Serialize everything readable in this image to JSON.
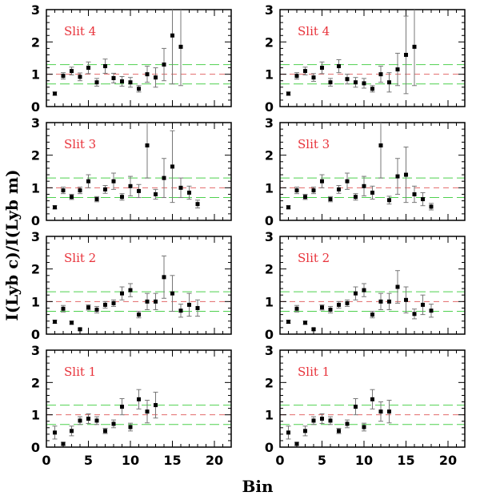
{
  "figure": {
    "xlabel": "Bin",
    "ylabel": "I(Lyb c)/I(Lyb m)"
  },
  "colors": {
    "label": "#e8333b",
    "green_line": "#4fd14f",
    "red_line": "#e36a6a",
    "marker": "#000000",
    "errorbar": "#777777"
  },
  "chart_data": [
    {
      "type": "scatter",
      "title": "Slit 4",
      "column": "left",
      "row": 1,
      "x": [
        1,
        2,
        3,
        4,
        5,
        6,
        7,
        8,
        9,
        10,
        11,
        12,
        13,
        14,
        15,
        16
      ],
      "y": [
        0.4,
        0.95,
        1.1,
        0.92,
        1.2,
        0.75,
        1.25,
        0.88,
        0.78,
        0.75,
        0.55,
        1.0,
        0.9,
        1.3,
        2.2,
        1.85
      ],
      "err": [
        0.05,
        0.1,
        0.12,
        0.12,
        0.18,
        0.12,
        0.22,
        0.15,
        0.15,
        0.15,
        0.1,
        0.25,
        0.3,
        0.5,
        1.5,
        1.2
      ],
      "xlim": [
        0,
        22
      ],
      "ylim": [
        0,
        3
      ],
      "xticks": [
        0,
        5,
        10,
        15,
        20
      ],
      "yticks": [
        0,
        1,
        2,
        3
      ],
      "hlines": {
        "green": [
          0.7,
          1.3
        ],
        "red": [
          1.0
        ]
      }
    },
    {
      "type": "scatter",
      "title": "Slit 4",
      "column": "right",
      "row": 1,
      "x": [
        1,
        2,
        3,
        4,
        5,
        6,
        7,
        8,
        9,
        10,
        11,
        12,
        13,
        14,
        15,
        16
      ],
      "y": [
        0.4,
        0.95,
        1.1,
        0.9,
        1.2,
        0.75,
        1.25,
        0.85,
        0.75,
        0.72,
        0.55,
        1.0,
        0.75,
        1.15,
        1.6,
        1.85
      ],
      "err": [
        0.05,
        0.1,
        0.12,
        0.12,
        0.18,
        0.12,
        0.2,
        0.15,
        0.15,
        0.15,
        0.1,
        0.25,
        0.3,
        0.5,
        1.2,
        1.2
      ],
      "xlim": [
        0,
        22
      ],
      "ylim": [
        0,
        3
      ],
      "xticks": [
        0,
        5,
        10,
        15,
        20
      ],
      "yticks": [
        0,
        1,
        2,
        3
      ],
      "hlines": {
        "green": [
          0.7,
          1.3
        ],
        "red": [
          1.0
        ]
      }
    },
    {
      "type": "scatter",
      "title": "Slit 3",
      "column": "left",
      "row": 2,
      "x": [
        1,
        2,
        3,
        4,
        5,
        6,
        7,
        8,
        9,
        10,
        11,
        12,
        13,
        14,
        15,
        16,
        17,
        18
      ],
      "y": [
        0.4,
        0.92,
        0.72,
        0.92,
        1.2,
        0.65,
        0.95,
        1.2,
        0.72,
        1.05,
        0.9,
        2.3,
        0.8,
        1.3,
        1.65,
        1.0,
        0.85,
        0.5
      ],
      "err": [
        0.05,
        0.1,
        0.08,
        0.1,
        0.2,
        0.08,
        0.12,
        0.25,
        0.1,
        0.3,
        0.2,
        1.0,
        0.15,
        0.6,
        1.1,
        0.3,
        0.2,
        0.12
      ],
      "xlim": [
        0,
        22
      ],
      "ylim": [
        0,
        3
      ],
      "xticks": [
        0,
        5,
        10,
        15,
        20
      ],
      "yticks": [
        0,
        1,
        2,
        3
      ],
      "hlines": {
        "green": [
          0.7,
          1.3
        ],
        "red": [
          1.0
        ]
      }
    },
    {
      "type": "scatter",
      "title": "Slit 3",
      "column": "right",
      "row": 2,
      "x": [
        1,
        2,
        3,
        4,
        5,
        6,
        7,
        8,
        9,
        10,
        11,
        12,
        13,
        14,
        15,
        16,
        17,
        18
      ],
      "y": [
        0.4,
        0.92,
        0.72,
        0.92,
        1.2,
        0.65,
        0.95,
        1.2,
        0.72,
        1.05,
        0.85,
        2.3,
        0.62,
        1.35,
        1.4,
        0.8,
        0.65,
        0.42
      ],
      "err": [
        0.05,
        0.1,
        0.08,
        0.1,
        0.2,
        0.08,
        0.12,
        0.25,
        0.1,
        0.3,
        0.2,
        1.0,
        0.12,
        0.55,
        0.85,
        0.25,
        0.2,
        0.1
      ],
      "xlim": [
        0,
        22
      ],
      "ylim": [
        0,
        3
      ],
      "xticks": [
        0,
        5,
        10,
        15,
        20
      ],
      "yticks": [
        0,
        1,
        2,
        3
      ],
      "hlines": {
        "green": [
          0.7,
          1.3
        ],
        "red": [
          1.0
        ]
      }
    },
    {
      "type": "scatter",
      "title": "Slit 2",
      "column": "left",
      "row": 3,
      "x": [
        1,
        2,
        3,
        4,
        5,
        6,
        7,
        8,
        9,
        10,
        11,
        12,
        13,
        14,
        15,
        16,
        17,
        18
      ],
      "y": [
        0.38,
        0.78,
        0.35,
        0.15,
        0.82,
        0.75,
        0.9,
        0.95,
        1.25,
        1.35,
        0.6,
        1.0,
        1.0,
        1.75,
        1.25,
        0.72,
        0.9,
        0.8
      ],
      "err": [
        0.05,
        0.1,
        0.05,
        0.03,
        0.08,
        0.1,
        0.1,
        0.1,
        0.2,
        0.2,
        0.1,
        0.25,
        0.25,
        0.65,
        0.55,
        0.2,
        0.35,
        0.25
      ],
      "xlim": [
        0,
        22
      ],
      "ylim": [
        0,
        3
      ],
      "xticks": [
        0,
        5,
        10,
        15,
        20
      ],
      "yticks": [
        0,
        1,
        2,
        3
      ],
      "hlines": {
        "green": [
          0.7,
          1.3
        ],
        "red": [
          1.0
        ]
      }
    },
    {
      "type": "scatter",
      "title": "Slit 2",
      "column": "right",
      "row": 3,
      "x": [
        1,
        2,
        3,
        4,
        5,
        6,
        7,
        8,
        9,
        10,
        11,
        12,
        13,
        14,
        15,
        16,
        17,
        18
      ],
      "y": [
        0.38,
        0.78,
        0.35,
        0.15,
        0.82,
        0.75,
        0.9,
        0.95,
        1.25,
        1.35,
        0.6,
        1.0,
        1.0,
        1.45,
        1.05,
        0.62,
        0.9,
        0.72
      ],
      "err": [
        0.05,
        0.1,
        0.05,
        0.03,
        0.08,
        0.1,
        0.1,
        0.1,
        0.2,
        0.2,
        0.1,
        0.25,
        0.25,
        0.5,
        0.4,
        0.15,
        0.3,
        0.2
      ],
      "xlim": [
        0,
        22
      ],
      "ylim": [
        0,
        3
      ],
      "xticks": [
        0,
        5,
        10,
        15,
        20
      ],
      "yticks": [
        0,
        1,
        2,
        3
      ],
      "hlines": {
        "green": [
          0.7,
          1.3
        ],
        "red": [
          1.0
        ]
      }
    },
    {
      "type": "scatter",
      "title": "Slit 1",
      "column": "left",
      "row": 4,
      "x": [
        1,
        2,
        3,
        4,
        5,
        6,
        7,
        8,
        9,
        10,
        11,
        12,
        13
      ],
      "y": [
        0.45,
        0.1,
        0.5,
        0.82,
        0.88,
        0.82,
        0.5,
        0.72,
        1.25,
        0.62,
        1.48,
        1.1,
        1.3
      ],
      "err": [
        0.2,
        0.05,
        0.15,
        0.12,
        0.15,
        0.12,
        0.08,
        0.12,
        0.25,
        0.12,
        0.3,
        0.35,
        0.4
      ],
      "xlim": [
        0,
        22
      ],
      "ylim": [
        0,
        3
      ],
      "xticks": [
        0,
        5,
        10,
        15,
        20
      ],
      "yticks": [
        0,
        1,
        2,
        3
      ],
      "hlines": {
        "green": [
          0.7,
          1.3
        ],
        "red": [
          1.0
        ]
      }
    },
    {
      "type": "scatter",
      "title": "Slit 1",
      "column": "right",
      "row": 4,
      "x": [
        1,
        2,
        3,
        4,
        5,
        6,
        7,
        8,
        9,
        10,
        11,
        12,
        13
      ],
      "y": [
        0.45,
        0.1,
        0.5,
        0.82,
        0.88,
        0.82,
        0.5,
        0.72,
        1.25,
        0.62,
        1.48,
        1.1,
        1.1
      ],
      "err": [
        0.2,
        0.05,
        0.15,
        0.12,
        0.15,
        0.12,
        0.08,
        0.12,
        0.25,
        0.12,
        0.3,
        0.3,
        0.35
      ],
      "xlim": [
        0,
        22
      ],
      "ylim": [
        0,
        3
      ],
      "xticks": [
        0,
        5,
        10,
        15,
        20
      ],
      "yticks": [
        0,
        1,
        2,
        3
      ],
      "hlines": {
        "green": [
          0.7,
          1.3
        ],
        "red": [
          1.0
        ]
      }
    }
  ]
}
